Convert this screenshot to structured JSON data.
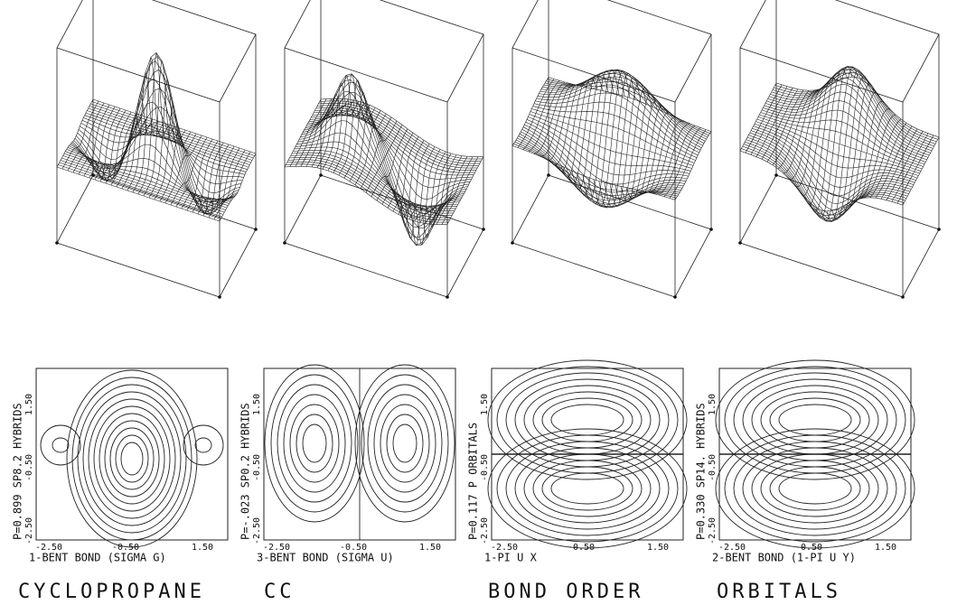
{
  "panels": [
    {
      "side_label": "P=0.899 SP8.2 HYBRIDS",
      "y_ticks": [
        "1.50",
        "-0.50",
        "-2.50"
      ],
      "x_ticks": [
        "-2.50",
        "-0.50",
        "1.50"
      ],
      "caption": "1-BENT BOND (SIGMA G)"
    },
    {
      "side_label": "P=-.023 SP0.2 HYBRIDS",
      "y_ticks": [
        "1.50",
        "-0.50",
        "-2.50"
      ],
      "x_ticks": [
        "-2.50",
        "-0.50",
        "1.50"
      ],
      "caption": "3-BENT BOND (SIGMA U)"
    },
    {
      "side_label": "P=0.117 P ORBITALS",
      "y_ticks": [
        "1.50",
        "-0.50",
        "-2.50"
      ],
      "x_ticks": [
        "-2.50",
        "-0.50",
        "1.50"
      ],
      "caption": "1-PI U X"
    },
    {
      "side_label": "P=0.330 SP14. HYBRIDS",
      "y_ticks": [
        "1.50",
        "-0.50",
        "-2.50"
      ],
      "x_ticks": [
        "-2.50",
        "-0.50",
        "1.50"
      ],
      "caption": "2-BENT BOND (1-PI U Y)"
    }
  ],
  "footer": [
    "CYCLOPROPANE",
    "CC",
    "BOND ORDER",
    "ORBITALS"
  ]
}
